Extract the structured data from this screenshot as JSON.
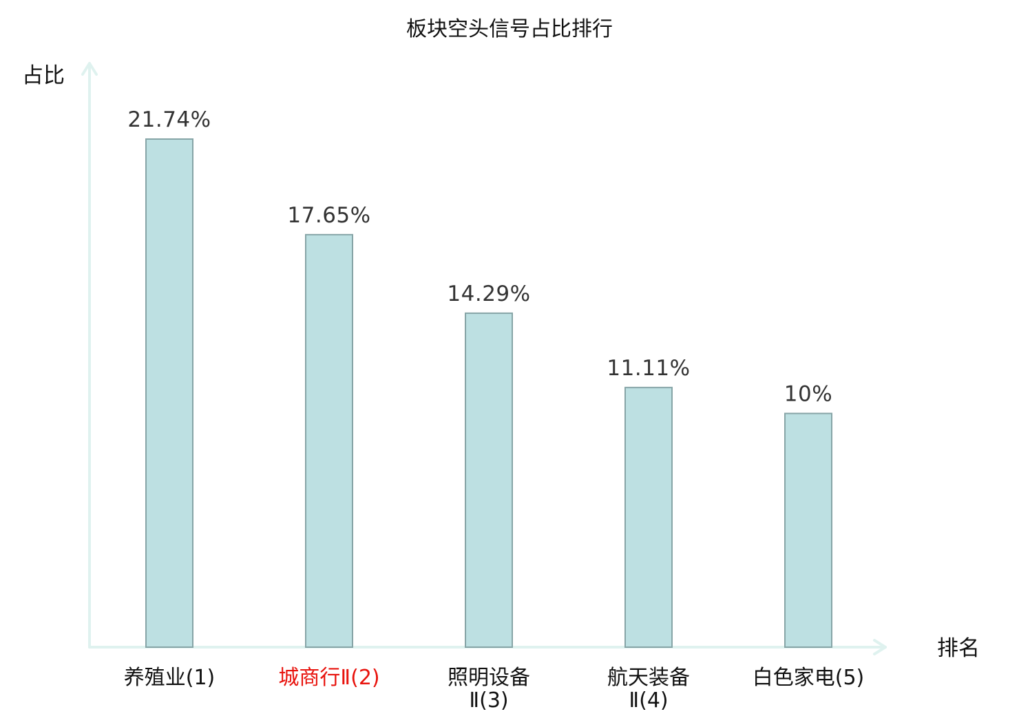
{
  "chart_data": {
    "type": "bar",
    "title": "板块空头信号占比排行",
    "ylabel": "占比",
    "xlabel": "排名",
    "categories": [
      {
        "lines": [
          "养殖业(1)"
        ],
        "highlight": false
      },
      {
        "lines": [
          "城商行Ⅱ(2)"
        ],
        "highlight": true
      },
      {
        "lines": [
          "照明设备",
          "Ⅱ(3)"
        ],
        "highlight": false
      },
      {
        "lines": [
          "航天装备",
          "Ⅱ(4)"
        ],
        "highlight": false
      },
      {
        "lines": [
          "白色家电(5)"
        ],
        "highlight": false
      }
    ],
    "values": [
      21.74,
      17.65,
      14.29,
      11.11,
      10
    ],
    "value_labels": [
      "21.74%",
      "17.65%",
      "14.29%",
      "11.11%",
      "10%"
    ],
    "ylim": [
      0,
      24
    ],
    "grid": false,
    "colors": {
      "bar_fill": "#bde0e2",
      "bar_stroke": "#86a4a6",
      "axis": "#dff2ef",
      "highlight_label": "#e8120c"
    }
  }
}
